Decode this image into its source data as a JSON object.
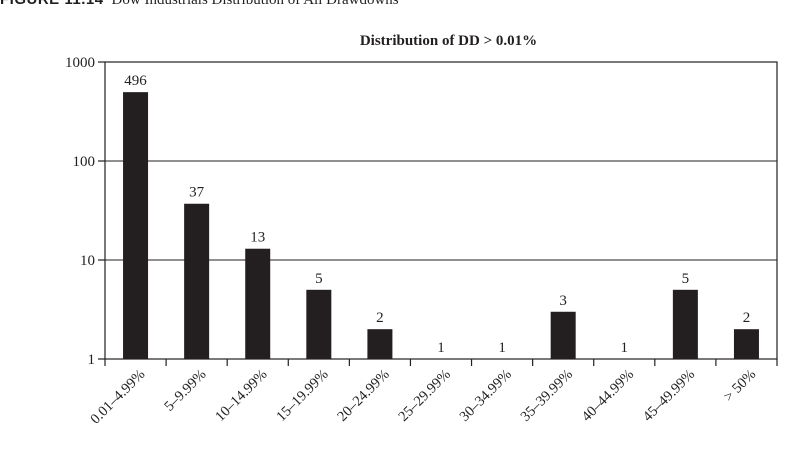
{
  "figure": {
    "label": "FIGURE 11.14",
    "caption": "Dow Industrials Distribution of All Drawdowns"
  },
  "chart_data": {
    "type": "bar",
    "title": "Distribution of DD > 0.01%",
    "xlabel": "",
    "ylabel": "",
    "yscale": "log",
    "ylim": [
      1,
      1000
    ],
    "yticks": [
      1,
      10,
      100,
      1000
    ],
    "grid": "horizontal at major ticks",
    "bar_color": "#231f20",
    "categories": [
      "0.01–4.99%",
      "5–9.99%",
      "10–14.99%",
      "15–19.99%",
      "20–24.99%",
      "25–29.99%",
      "30–34.99%",
      "35–39.99%",
      "40–44.99%",
      "45–49.99%",
      "> 50%"
    ],
    "values": [
      496,
      37,
      13,
      5,
      2,
      1,
      1,
      3,
      1,
      5,
      2
    ],
    "value_labels": [
      "496",
      "37",
      "13",
      "5",
      "2",
      "1",
      "1",
      "3",
      "1",
      "5",
      "2"
    ]
  }
}
